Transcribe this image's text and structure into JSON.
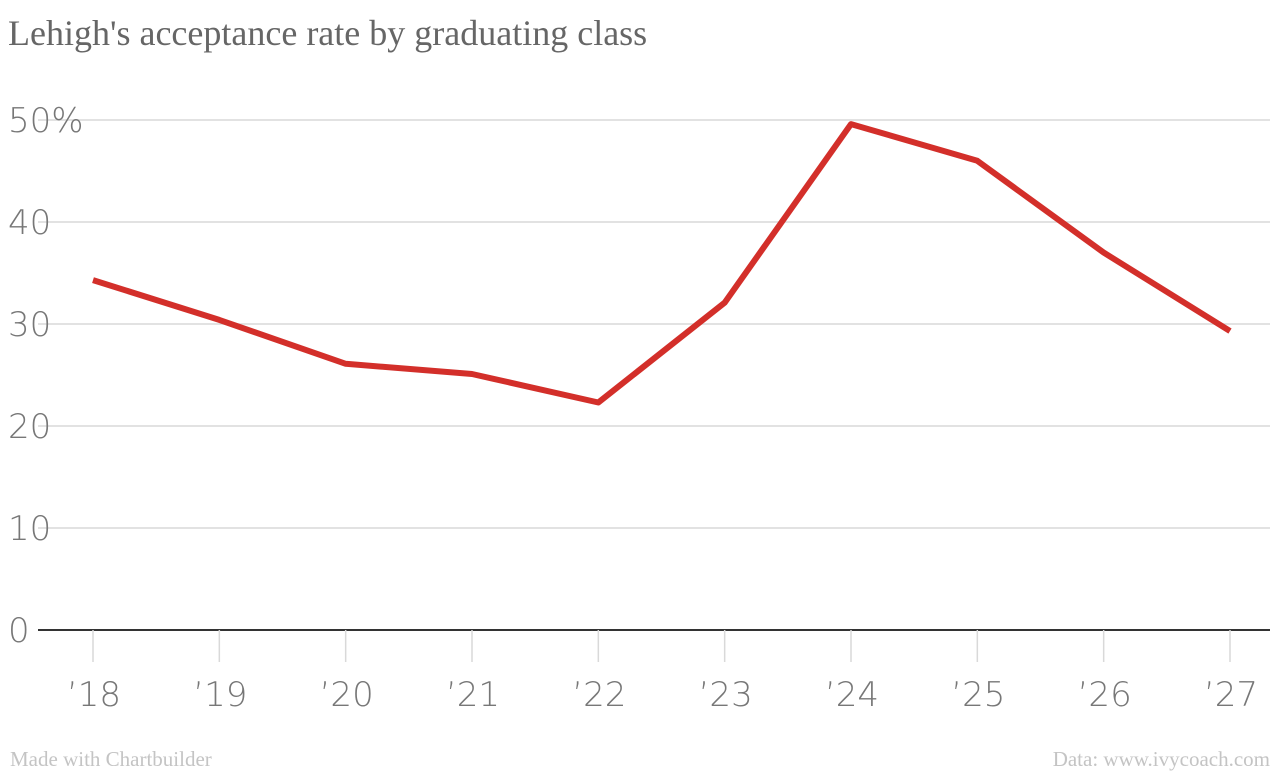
{
  "chart_data": {
    "type": "line",
    "title": "Lehigh's acceptance rate by graduating class",
    "xlabel": "",
    "ylabel": "",
    "categories": [
      "’18",
      "’19",
      "’20",
      "’21",
      "’22",
      "’23",
      "’24",
      "’25",
      "’26",
      "’27"
    ],
    "series": [
      {
        "values": [
          34.3,
          30.4,
          26.1,
          25.1,
          22.3,
          32.1,
          49.6,
          46.0,
          37.0,
          29.3
        ],
        "color": "#d32f2a"
      }
    ],
    "ylim": [
      0,
      50
    ],
    "yticks": [
      0,
      10,
      20,
      30,
      40,
      50
    ],
    "ytick_labels": [
      "0",
      "10",
      "20",
      "30",
      "40",
      "50%"
    ],
    "grid": true
  },
  "footer": {
    "left": "Made with Chartbuilder",
    "right": "Data: www.ivycoach.com"
  }
}
